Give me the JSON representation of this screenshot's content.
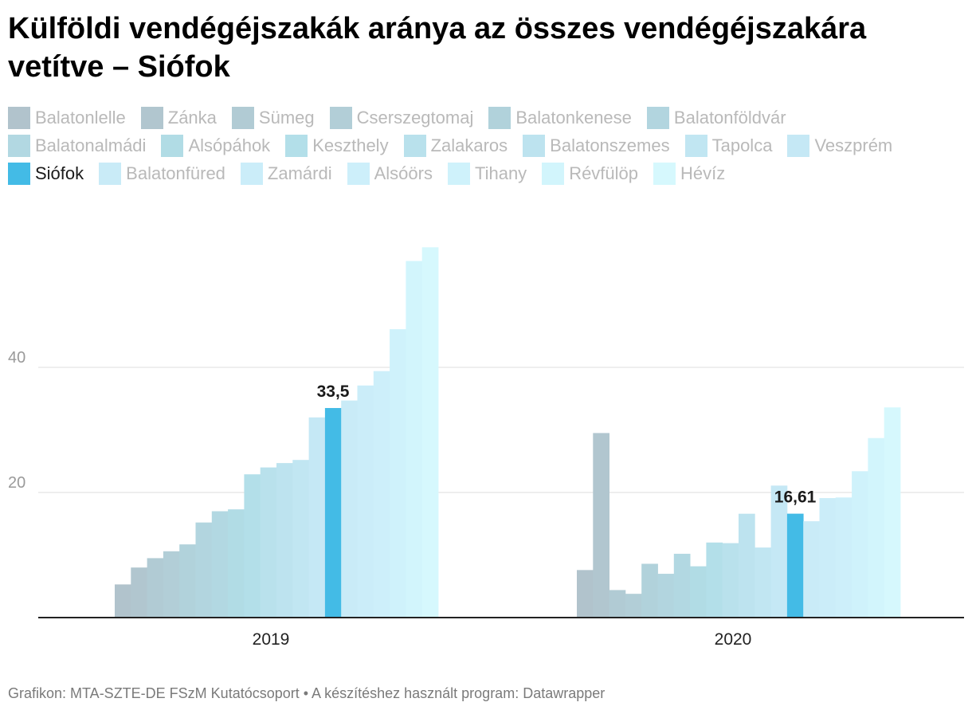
{
  "title": "Külföldi vendégéjszakák aránya az összes vendégéjszakára vetítve – Siófok",
  "legend_rows": [
    [
      {
        "label": "Balatonlelle",
        "color": "#b1c3cc"
      },
      {
        "label": "Zánka",
        "color": "#b1c6cf"
      },
      {
        "label": "Sümeg",
        "color": "#b1cbd4"
      },
      {
        "label": "Cserszegtomaj",
        "color": "#b2ced7"
      },
      {
        "label": "Balatonkenese",
        "color": "#b1d2db"
      },
      {
        "label": "Balatonföldvár",
        "color": "#b2d5df"
      }
    ],
    [
      {
        "label": "Balatonalmádi",
        "color": "#b2d8e2"
      },
      {
        "label": "Alsópáhok",
        "color": "#b1dce5"
      },
      {
        "label": "Keszthely",
        "color": "#b3dfe9"
      },
      {
        "label": "Zalakaros",
        "color": "#b9e1ec"
      },
      {
        "label": "Balatonszemes",
        "color": "#bde3ef"
      },
      {
        "label": "Tapolca",
        "color": "#c1e6f2"
      },
      {
        "label": "Veszprém",
        "color": "#c5e8f5"
      }
    ],
    [
      {
        "label": "Siófok",
        "color": "#43bbe6",
        "active": true
      },
      {
        "label": "Balatonfüred",
        "color": "#c9ebf7"
      },
      {
        "label": "Zamárdi",
        "color": "#cbedf9"
      },
      {
        "label": "Alsóörs",
        "color": "#cdeffa"
      },
      {
        "label": "Tihany",
        "color": "#cff2fb"
      },
      {
        "label": "Révfülöp",
        "color": "#d2f5fc"
      },
      {
        "label": "Hévíz",
        "color": "#d6f8fd"
      }
    ]
  ],
  "chart_data": {
    "type": "bar",
    "categories": [
      "2019",
      "2020"
    ],
    "yticks": [
      20,
      40
    ],
    "ylim": [
      0,
      60
    ],
    "highlight": "Siófok",
    "highlight_color": "#43bbe6",
    "groups": [
      {
        "category": "2019",
        "bars": [
          {
            "name": "Balatonlelle",
            "value": 5.3,
            "color": "#b1c3cc"
          },
          {
            "name": "Zánka",
            "value": 8.0,
            "color": "#b1c6cf"
          },
          {
            "name": "Sümeg",
            "value": 9.5,
            "color": "#b1cbd4"
          },
          {
            "name": "Cserszegtomaj",
            "value": 10.6,
            "color": "#b2ced7"
          },
          {
            "name": "Balatonkenese",
            "value": 11.7,
            "color": "#b1d2db"
          },
          {
            "name": "Balatonföldvár",
            "value": 15.2,
            "color": "#b2d5df"
          },
          {
            "name": "Balatonalmádi",
            "value": 17.0,
            "color": "#b2d8e2"
          },
          {
            "name": "Alsópáhok",
            "value": 17.3,
            "color": "#b1dce5"
          },
          {
            "name": "Keszthely",
            "value": 22.9,
            "color": "#b3dfe9"
          },
          {
            "name": "Zalakaros",
            "value": 24.0,
            "color": "#b9e1ec"
          },
          {
            "name": "Balatonszemes",
            "value": 24.7,
            "color": "#bde3ef"
          },
          {
            "name": "Tapolca",
            "value": 25.2,
            "color": "#c1e6f2"
          },
          {
            "name": "Veszprém",
            "value": 32.0,
            "color": "#c5e8f5"
          },
          {
            "name": "Siófok",
            "value": 33.5,
            "label": "33,5",
            "color": "#43bbe6"
          },
          {
            "name": "Balatonfüred",
            "value": 34.7,
            "color": "#c9ebf7"
          },
          {
            "name": "Zamárdi",
            "value": 37.1,
            "color": "#cbedf9"
          },
          {
            "name": "Alsóörs",
            "value": 39.4,
            "color": "#cdeffa"
          },
          {
            "name": "Tihany",
            "value": 46.1,
            "color": "#cff2fb"
          },
          {
            "name": "Révfülöp",
            "value": 57.0,
            "color": "#d2f5fc"
          },
          {
            "name": "Hévíz",
            "value": 59.2,
            "color": "#d6f8fd"
          }
        ]
      },
      {
        "category": "2020",
        "bars": [
          {
            "name": "Balatonlelle",
            "value": 7.6,
            "color": "#b1c3cc"
          },
          {
            "name": "Zánka",
            "value": 29.5,
            "color": "#b1c6cf"
          },
          {
            "name": "Sümeg",
            "value": 4.4,
            "color": "#b1cbd4"
          },
          {
            "name": "Cserszegtomaj",
            "value": 3.8,
            "color": "#b2ced7"
          },
          {
            "name": "Balatonkenese",
            "value": 8.6,
            "color": "#b1d2db"
          },
          {
            "name": "Balatonföldvár",
            "value": 7.0,
            "color": "#b2d5df"
          },
          {
            "name": "Balatonalmádi",
            "value": 10.2,
            "color": "#b2d8e2"
          },
          {
            "name": "Alsópáhok",
            "value": 8.2,
            "color": "#b1dce5"
          },
          {
            "name": "Keszthely",
            "value": 12.0,
            "color": "#b3dfe9"
          },
          {
            "name": "Zalakaros",
            "value": 11.9,
            "color": "#b9e1ec"
          },
          {
            "name": "Balatonszemes",
            "value": 16.6,
            "color": "#bde3ef"
          },
          {
            "name": "Tapolca",
            "value": 11.2,
            "color": "#c1e6f2"
          },
          {
            "name": "Veszprém",
            "value": 21.1,
            "color": "#c5e8f5"
          },
          {
            "name": "Siófok",
            "value": 16.61,
            "label": "16,61",
            "color": "#43bbe6"
          },
          {
            "name": "Balatonfüred",
            "value": 15.4,
            "color": "#c9ebf7"
          },
          {
            "name": "Zamárdi",
            "value": 19.1,
            "color": "#cbedf9"
          },
          {
            "name": "Alsóörs",
            "value": 19.2,
            "color": "#cdeffa"
          },
          {
            "name": "Tihany",
            "value": 23.4,
            "color": "#cff2fb"
          },
          {
            "name": "Révfülöp",
            "value": 28.7,
            "color": "#d2f5fc"
          },
          {
            "name": "Hévíz",
            "value": 33.6,
            "color": "#d6f8fd"
          }
        ]
      }
    ]
  },
  "footer": "Grafikon: MTA-SZTE-DE FSzM Kutatócsoport • A készítéshez használt program: Datawrapper"
}
